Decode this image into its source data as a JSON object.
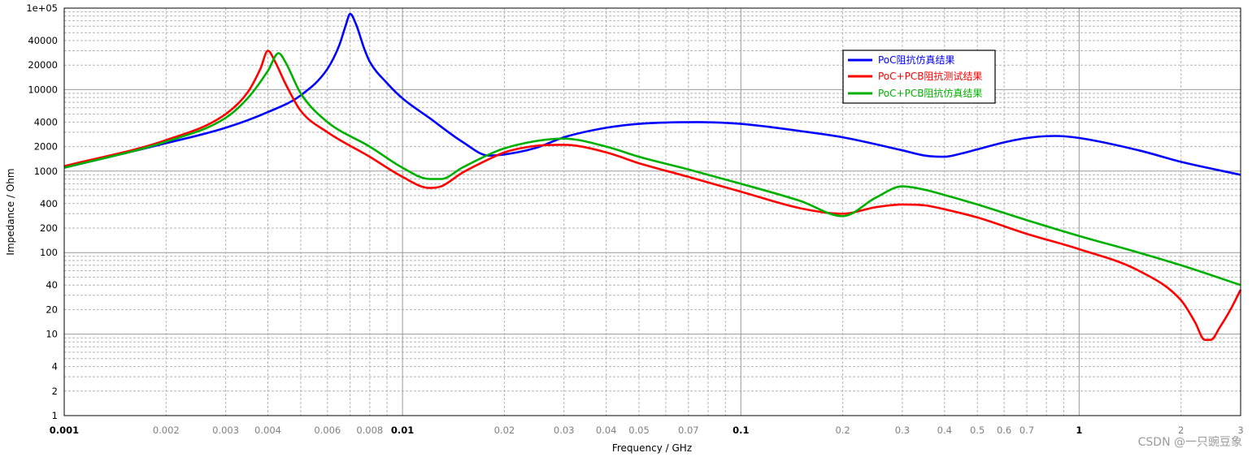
{
  "chart_data": {
    "type": "line",
    "xlabel": "Frequency / GHz",
    "ylabel": "Impedance / Ohm",
    "x_scale": "log",
    "y_scale": "log",
    "xlim": [
      0.001,
      3
    ],
    "ylim": [
      1,
      100000
    ],
    "grid": true,
    "legend_position": "top-right",
    "y_ticks": [
      {
        "value": 1,
        "label": "1"
      },
      {
        "value": 2,
        "label": "2"
      },
      {
        "value": 4,
        "label": "4"
      },
      {
        "value": 10,
        "label": "10"
      },
      {
        "value": 20,
        "label": "20"
      },
      {
        "value": 40,
        "label": "40"
      },
      {
        "value": 100,
        "label": "100"
      },
      {
        "value": 200,
        "label": "200"
      },
      {
        "value": 400,
        "label": "400"
      },
      {
        "value": 1000,
        "label": "1000"
      },
      {
        "value": 2000,
        "label": "2000"
      },
      {
        "value": 4000,
        "label": "4000"
      },
      {
        "value": 10000,
        "label": "10000"
      },
      {
        "value": 20000,
        "label": "20000"
      },
      {
        "value": 40000,
        "label": "40000"
      },
      {
        "value": 100000,
        "label": "1e+05"
      }
    ],
    "x_ticks": [
      {
        "value": 0.001,
        "label": "0.001",
        "major": true
      },
      {
        "value": 0.002,
        "label": "0.002"
      },
      {
        "value": 0.003,
        "label": "0.003"
      },
      {
        "value": 0.004,
        "label": "0.004"
      },
      {
        "value": 0.006,
        "label": "0.006"
      },
      {
        "value": 0.008,
        "label": "0.008"
      },
      {
        "value": 0.01,
        "label": "0.01",
        "major": true
      },
      {
        "value": 0.02,
        "label": "0.02"
      },
      {
        "value": 0.03,
        "label": "0.03"
      },
      {
        "value": 0.04,
        "label": "0.04"
      },
      {
        "value": 0.05,
        "label": "0.05"
      },
      {
        "value": 0.07,
        "label": "0.07"
      },
      {
        "value": 0.1,
        "label": "0.1",
        "major": true
      },
      {
        "value": 0.2,
        "label": "0.2"
      },
      {
        "value": 0.3,
        "label": "0.3"
      },
      {
        "value": 0.4,
        "label": "0.4"
      },
      {
        "value": 0.5,
        "label": "0.5"
      },
      {
        "value": 0.6,
        "label": "0.6"
      },
      {
        "value": 0.7,
        "label": "0.7"
      },
      {
        "value": 1,
        "label": "1",
        "major": true
      },
      {
        "value": 2,
        "label": "2"
      },
      {
        "value": 3,
        "label": "3"
      }
    ],
    "series": [
      {
        "name": "PoC阻抗仿真结果",
        "color": "#0000ff",
        "x": [
          0.001,
          0.002,
          0.003,
          0.004,
          0.005,
          0.006,
          0.0065,
          0.0068,
          0.007,
          0.0073,
          0.0077,
          0.008,
          0.009,
          0.01,
          0.012,
          0.015,
          0.018,
          0.02,
          0.025,
          0.03,
          0.04,
          0.05,
          0.06,
          0.075,
          0.1,
          0.15,
          0.2,
          0.3,
          0.35,
          0.4,
          0.45,
          0.5,
          0.6,
          0.7,
          0.85,
          1,
          1.5,
          2,
          3
        ],
        "y": [
          1100,
          2200,
          3400,
          5300,
          8500,
          18000,
          35000,
          62000,
          85000,
          62000,
          32000,
          22000,
          12000,
          7800,
          4500,
          2300,
          1550,
          1600,
          1950,
          2600,
          3400,
          3800,
          3950,
          4000,
          3800,
          3100,
          2600,
          1800,
          1550,
          1500,
          1650,
          1850,
          2250,
          2550,
          2700,
          2550,
          1800,
          1300,
          900
        ]
      },
      {
        "name": "PoC+PCB阻抗测试结果",
        "color": "#ff0000",
        "x": [
          0.001,
          0.002,
          0.003,
          0.0035,
          0.0038,
          0.004,
          0.0042,
          0.0045,
          0.005,
          0.006,
          0.008,
          0.01,
          0.012,
          0.013,
          0.015,
          0.018,
          0.02,
          0.025,
          0.03,
          0.04,
          0.05,
          0.07,
          0.1,
          0.15,
          0.2,
          0.25,
          0.3,
          0.35,
          0.4,
          0.5,
          0.7,
          1,
          1.5,
          2,
          2.2,
          2.35,
          2.45,
          2.6,
          2.8,
          3
        ],
        "y": [
          1150,
          2400,
          5000,
          9500,
          18000,
          30000,
          22000,
          12000,
          5500,
          3000,
          1500,
          850,
          620,
          650,
          950,
          1400,
          1700,
          2050,
          2100,
          1700,
          1250,
          850,
          560,
          350,
          300,
          360,
          390,
          380,
          340,
          270,
          170,
          110,
          60,
          26,
          14,
          8.5,
          8.5,
          12,
          20,
          35
        ]
      },
      {
        "name": "PoC+PCB阻抗仿真结果",
        "color": "#00b000",
        "x": [
          0.001,
          0.002,
          0.003,
          0.0035,
          0.004,
          0.0043,
          0.0045,
          0.005,
          0.006,
          0.008,
          0.01,
          0.012,
          0.013,
          0.015,
          0.018,
          0.02,
          0.025,
          0.03,
          0.04,
          0.05,
          0.07,
          0.1,
          0.15,
          0.2,
          0.25,
          0.3,
          0.35,
          0.4,
          0.5,
          0.7,
          1,
          1.5,
          2,
          3
        ],
        "y": [
          1100,
          2300,
          4500,
          8000,
          17000,
          28000,
          22000,
          9000,
          4000,
          2000,
          1100,
          800,
          800,
          1100,
          1600,
          1900,
          2350,
          2500,
          2000,
          1500,
          1050,
          700,
          430,
          280,
          470,
          650,
          590,
          510,
          390,
          250,
          160,
          100,
          70,
          40
        ]
      }
    ]
  },
  "watermark": "CSDN @一只豌豆象"
}
